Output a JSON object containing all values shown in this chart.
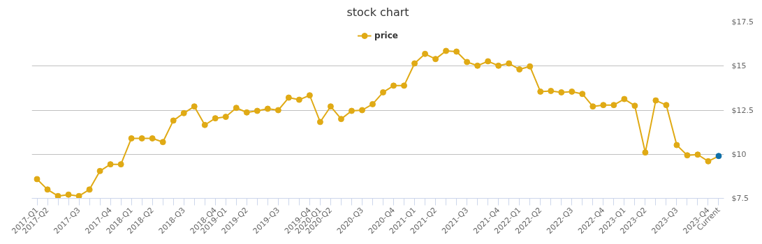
{
  "chart_data": {
    "type": "line",
    "title": "stock chart",
    "categories": [
      "2017-Q1",
      "2017-Q2",
      null,
      null,
      "2017-Q3",
      null,
      null,
      "2017-Q4",
      null,
      "2018-Q1",
      null,
      "2018-Q2",
      null,
      null,
      "2018-Q3",
      null,
      null,
      "2018-Q4",
      "2019-Q1",
      null,
      "2019-Q2",
      null,
      null,
      "2019-Q3",
      null,
      null,
      "2019-Q4",
      "2020-Q1",
      "2020-Q2",
      null,
      null,
      "2020-Q3",
      null,
      null,
      "2020-Q4",
      null,
      "2021-Q1",
      null,
      "2021-Q2",
      null,
      null,
      "2021-Q3",
      null,
      null,
      "2021-Q4",
      null,
      "2022-Q1",
      null,
      "2022-Q2",
      null,
      null,
      "2022-Q3",
      null,
      null,
      "2022-Q4",
      null,
      "2023-Q1",
      null,
      "2023-Q2",
      null,
      null,
      "2023-Q3",
      null,
      null,
      "2023-Q4",
      "Current"
    ],
    "series": [
      {
        "name": "price",
        "color": "#e0aa15",
        "colors": [
          "#e0aa15",
          "#e0aa15",
          "#e0aa15",
          "#e0aa15",
          "#e0aa15",
          "#e0aa15",
          "#e0aa15",
          "#e0aa15",
          "#e0aa15",
          "#e0aa15",
          "#e0aa15",
          "#e0aa15",
          "#e0aa15",
          "#e0aa15",
          "#e0aa15",
          "#e0aa15",
          "#e0aa15",
          "#e0aa15",
          "#e0aa15",
          "#e0aa15",
          "#e0aa15",
          "#e0aa15",
          "#e0aa15",
          "#e0aa15",
          "#e0aa15",
          "#e0aa15",
          "#e0aa15",
          "#e0aa15",
          "#e0aa15",
          "#e0aa15",
          "#e0aa15",
          "#e0aa15",
          "#e0aa15",
          "#e0aa15",
          "#e0aa15",
          "#e0aa15",
          "#e0aa15",
          "#e0aa15",
          "#e0aa15",
          "#e0aa15",
          "#e0aa15",
          "#e0aa15",
          "#e0aa15",
          "#e0aa15",
          "#e0aa15",
          "#e0aa15",
          "#e0aa15",
          "#e0aa15",
          "#e0aa15",
          "#e0aa15",
          "#e0aa15",
          "#e0aa15",
          "#e0aa15",
          "#e0aa15",
          "#e0aa15",
          "#e0aa15",
          "#e0aa15",
          "#e0aa15",
          "#e0aa15",
          "#e0aa15",
          "#e0aa15",
          "#e0aa15",
          "#e0aa15",
          "#e0aa15",
          "#e0aa15",
          "#0f6fa8"
        ],
        "values": [
          8.59,
          8.0,
          7.63,
          7.71,
          7.63,
          8.0,
          9.05,
          9.43,
          9.43,
          10.9,
          10.9,
          10.9,
          10.69,
          11.91,
          12.33,
          12.71,
          11.66,
          12.04,
          12.12,
          12.63,
          12.37,
          12.46,
          12.58,
          12.5,
          13.21,
          13.09,
          13.34,
          11.83,
          12.71,
          12.0,
          12.46,
          12.5,
          12.84,
          13.51,
          13.89,
          13.89,
          15.15,
          15.69,
          15.4,
          15.86,
          15.82,
          15.23,
          15.02,
          15.27,
          15.02,
          15.15,
          14.81,
          14.98,
          13.55,
          13.59,
          13.51,
          13.55,
          13.42,
          12.71,
          12.79,
          12.79,
          13.13,
          12.75,
          10.1,
          13.05,
          12.79,
          10.52,
          9.94,
          9.98,
          9.6,
          9.9
        ]
      }
    ],
    "ylim": [
      7.5,
      17.5
    ],
    "yticks": [
      {
        "value": 7.5,
        "label": "$7.5"
      },
      {
        "value": 10,
        "label": "$10"
      },
      {
        "value": 12.5,
        "label": "$12.5"
      },
      {
        "value": 15,
        "label": "$15"
      },
      {
        "value": 17.5,
        "label": "$17.5"
      }
    ],
    "grid": "y",
    "legend": "top",
    "marker": "circle",
    "line_style": "solid",
    "tick_labels": "xy"
  }
}
